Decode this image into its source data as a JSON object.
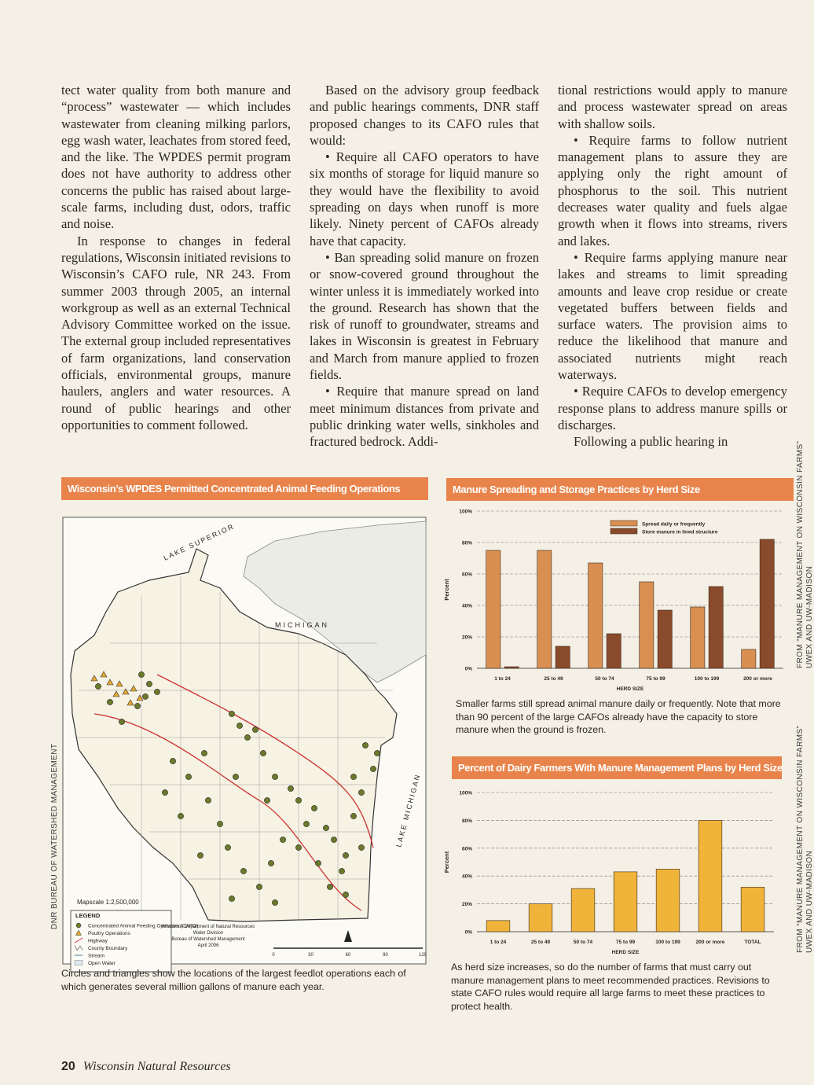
{
  "columns": [
    {
      "paragraphs": [
        "tect water quality from both manure and “process” wastewater — which includes wastewater from cleaning milking parlors, egg wash water, leachates from stored feed, and the like. The WPDES permit program does not have authority to address other concerns the public has raised about large-scale farms, including dust, odors, traffic and noise.",
        "In response to changes in federal regulations, Wisconsin initiated revisions to Wisconsin’s CAFO rule, NR 243. From summer 2003 through 2005, an internal workgroup as well as an external Technical Advisory Committee worked on the issue. The external group included representatives of farm organizations, land conservation officials, environmental groups, manure haulers, anglers and water resources. A round of public hearings and other opportunities to comment followed."
      ]
    },
    {
      "paragraphs": [
        "Based on the advisory group feedback and public hearings comments, DNR staff proposed changes to its CAFO rules that would:",
        "• Require all CAFO operators to have six months of storage for liquid manure so they would have the flexibility to avoid spreading on days when runoff is more likely. Ninety percent of CAFOs already have that capacity.",
        "• Ban spreading solid manure on frozen or snow-covered ground throughout the winter unless it is immediately worked into the ground. Research has shown that the risk of runoff to groundwater, streams and lakes in Wisconsin is greatest in February and March from manure applied to frozen fields.",
        "• Require that manure spread on land meet minimum distances from private and public drinking water wells, sinkholes and fractured bedrock. Addi-"
      ]
    },
    {
      "paragraphs": [
        "tional restrictions would apply to manure and process wastewater spread on areas with shallow soils.",
        "• Require farms to follow nutrient management plans to assure they are applying only the right amount of phosphorus to the soil. This nutrient decreases water quality and fuels algae growth when it flows into streams, rivers and lakes.",
        "• Require farms applying manure near lakes and streams to limit spreading amounts and leave crop residue or create vegetated buffers between fields and surface waters. The provision aims to reduce the likelihood that manure and associated nutrients might reach waterways.",
        "• Require CAFOs to develop emergency response plans to address manure spills or discharges.",
        "Following a public hearing in"
      ]
    }
  ],
  "map": {
    "title": "Wisconsin’s WPDES Permitted Concentrated Animal Feeding Operations",
    "lake_superior": "LAKE SUPERIOR",
    "michigan": "MICHIGAN",
    "lake_michigan": "LAKE MICHIGAN",
    "scale_text": "Mapscale 1:2,500,000",
    "legend_title": "LEGEND",
    "legend_items": [
      "Concentrated Animal Feeding Operation (CAFO)",
      "Poultry Operations",
      "Highway",
      "County Boundary",
      "Stream",
      "Open Water"
    ],
    "credit": [
      "Wisconsin Department of Natural Resources",
      "Water Division",
      "Bureau of Watershed Management",
      "April 2006"
    ],
    "scale_ticks": [
      0,
      30,
      60,
      90,
      120
    ],
    "caption": "Circles and triangles show the locations of the largest feedlot operations each of which generates several million gallons of manure each year.",
    "side_credit": "DNR BUREAU OF WATERSHED MANAGEMENT"
  },
  "chart_data": [
    {
      "type": "bar",
      "title": "Manure Spreading and Storage Practices by Herd Size",
      "categories": [
        "1 to 24",
        "25 to 49",
        "50 to 74",
        "75 to 99",
        "100 to 199",
        "200 or more"
      ],
      "series": [
        {
          "name": "Spread daily or frequently",
          "color": "#d98f52",
          "values": [
            75,
            75,
            67,
            55,
            39,
            12
          ]
        },
        {
          "name": "Store manure in lined structure",
          "color": "#8a4a2c",
          "values": [
            1,
            14,
            22,
            37,
            52,
            82
          ]
        }
      ],
      "ylim": [
        0,
        100
      ],
      "yticks": [
        {
          "value": 0,
          "label": "0%"
        },
        {
          "value": 20,
          "label": "20%"
        },
        {
          "value": 40,
          "label": "40%"
        },
        {
          "value": 60,
          "label": "60%"
        },
        {
          "value": 80,
          "label": "80%"
        },
        {
          "value": 100,
          "label": "100%"
        }
      ],
      "grid": true,
      "legend": "top-right",
      "xlabel": "HERD SIZE",
      "ylabel": "Percent",
      "caption": "Smaller farms still spread animal manure daily or frequently. Note that more than 90 percent of the large CAFOs already have the capacity to store manure when the ground is frozen.",
      "source": [
        "FROM “MANURE MANAGEMENT ON WISCONSIN FARMS”",
        "UWEX AND UW-MADISON"
      ]
    },
    {
      "type": "bar",
      "title": "Percent of Dairy Farmers With Manure Management Plans by Herd Size",
      "categories": [
        "1 to 24",
        "25 to 49",
        "50 to 74",
        "75 to 99",
        "100 to 199",
        "200 or more",
        "TOTAL"
      ],
      "values": [
        8,
        20,
        31,
        43,
        45,
        80,
        32
      ],
      "color": "#f0b43a",
      "ylim": [
        0,
        100
      ],
      "yticks": [
        {
          "value": 0,
          "label": "0%"
        },
        {
          "value": 20,
          "label": "20%"
        },
        {
          "value": 40,
          "label": "40%"
        },
        {
          "value": 60,
          "label": "60%"
        },
        {
          "value": 80,
          "label": "80%"
        },
        {
          "value": 100,
          "label": "100%"
        }
      ],
      "grid": true,
      "xlabel": "HERD SIZE",
      "ylabel": "Percent",
      "caption": "As herd size increases, so do the number of farms that must carry out manure management plans to meet recommended practices. Revisions to state CAFO rules would require all large farms to meet these practices to protect health.",
      "source": [
        "FROM “MANURE MANAGEMENT ON WISCONSIN FARMS”",
        "UWEX AND UW-MADISON"
      ]
    }
  ],
  "footer": {
    "page": "20",
    "publication": "Wisconsin Natural Resources"
  }
}
